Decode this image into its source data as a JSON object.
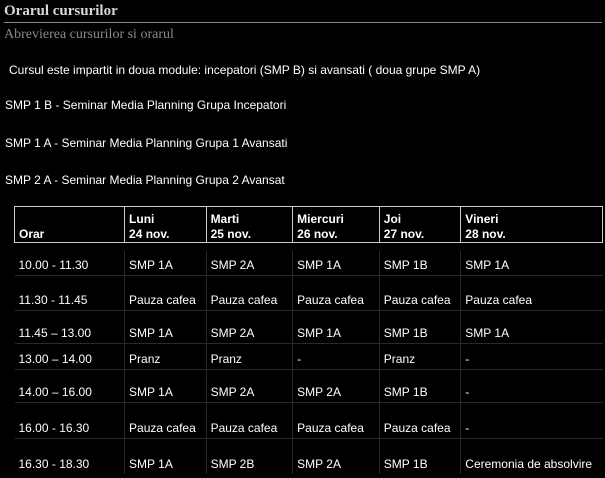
{
  "header": {
    "title": "Orarul cursurilor",
    "subtitle": "Abrevierea cursurilor si orarul"
  },
  "intro": " Cursul este impartit in doua module: incepatori (SMP B) si avansati ( doua grupe SMP A)",
  "groups": [
    "SMP 1 B - Seminar Media Planning Grupa Incepatori",
    "SMP 1 A - Seminar Media Planning Grupa 1 Avansati",
    "SMP 2 A - Seminar Media Planning Grupa 2 Avansat"
  ],
  "table": {
    "headers": [
      {
        "line1": "",
        "line2": "Orar"
      },
      {
        "line1": "Luni",
        "line2": "24 nov."
      },
      {
        "line1": "Marti",
        "line2": "25 nov."
      },
      {
        "line1": "Miercuri",
        "line2": "26 nov."
      },
      {
        "line1": "Joi",
        "line2": "27 nov."
      },
      {
        "line1": "Vineri",
        "line2": "28 nov."
      }
    ],
    "rows": [
      {
        "time": "10.00 - 11.30",
        "cells": [
          "SMP 1A",
          "SMP 2A",
          "SMP 1A",
          "SMP 1B",
          "SMP 1A"
        ]
      },
      {
        "time": "11.30 - 11.45",
        "cells": [
          "Pauza cafea",
          "Pauza cafea",
          "Pauza cafea",
          "Pauza cafea",
          "Pauza cafea"
        ]
      },
      {
        "time": "11.45 – 13.00",
        "cells": [
          "SMP 1A",
          "SMP 2A",
          "SMP 1A",
          "SMP 1B",
          "SMP 1A"
        ]
      },
      {
        "time": "13.00 – 14.00",
        "cells": [
          "Pranz",
          "Pranz",
          "-",
          "Pranz",
          " -"
        ]
      },
      {
        "time": "14.00 – 16.00",
        "cells": [
          "SMP 1A",
          "SMP 2A",
          "SMP 2A",
          "SMP 1B",
          " -"
        ]
      },
      {
        "time": "16.00 - 16.30",
        "cells": [
          "Pauza cafea",
          "Pauza cafea",
          "Pauza cafea",
          "Pauza cafea",
          " -"
        ]
      },
      {
        "time": "16.30 - 18.30",
        "cells": [
          "SMP 1A",
          "SMP 2B",
          "SMP 2A",
          "SMP 1B",
          "Ceremonia de absolvire"
        ]
      }
    ]
  }
}
